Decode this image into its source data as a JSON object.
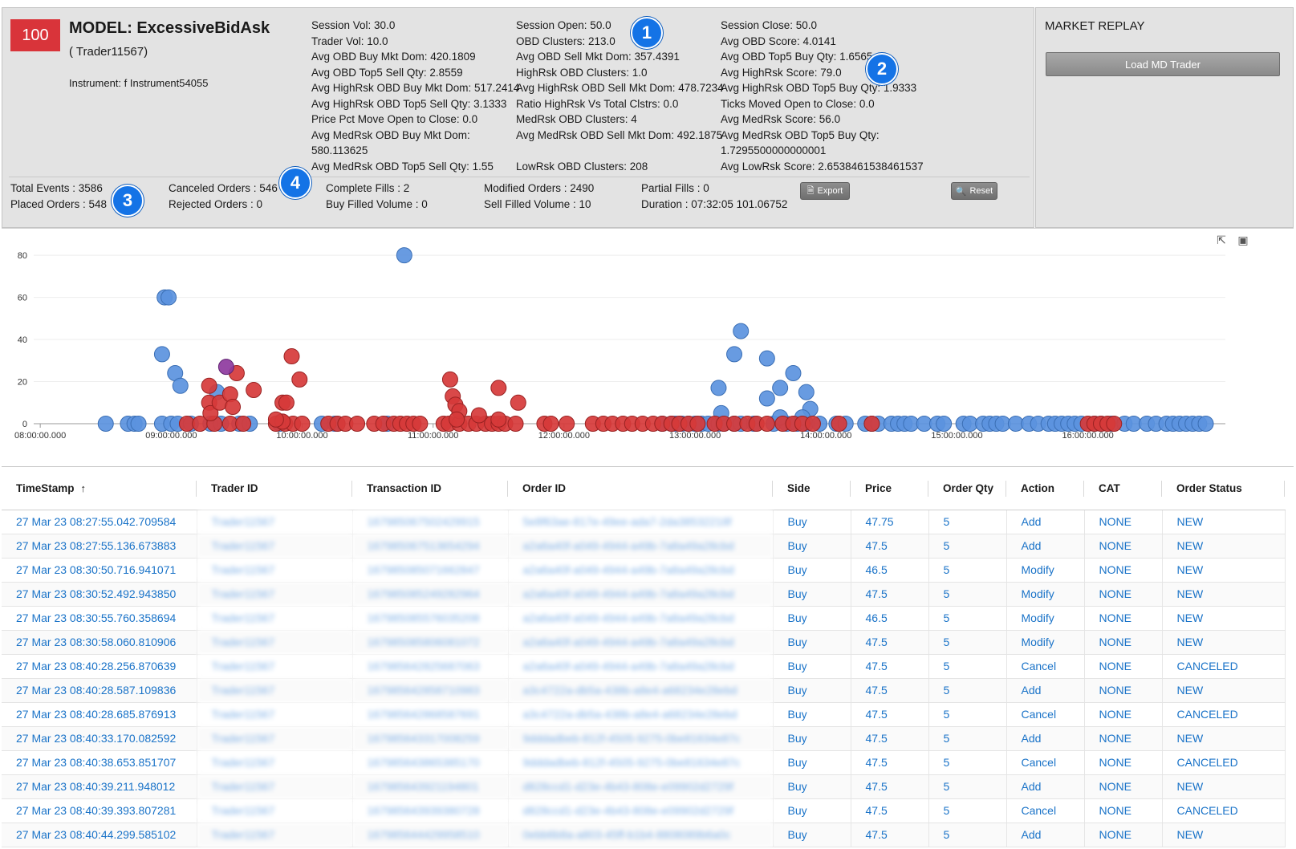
{
  "header": {
    "score": "100",
    "model_title": "MODEL: ExcessiveBidAsk",
    "trader": "( Trader11567)",
    "instrument": "Instrument: f Instrument54055",
    "stats_col1": [
      "Session Vol: 30.0",
      "Trader Vol: 10.0",
      "Avg OBD Buy Mkt Dom: 420.1809",
      "Avg OBD Top5 Sell Qty: 2.8559",
      "Avg HighRsk OBD Buy Mkt Dom: 517.2414",
      "Avg HighRsk OBD Top5 Sell Qty: 3.1333",
      "Price Pct Move Open to Close: 0.0",
      "Avg MedRsk OBD Buy Mkt Dom:",
      "580.113625",
      "Avg MedRsk OBD Top5 Sell Qty: 1.55"
    ],
    "stats_col2": [
      "Session Open: 50.0",
      "OBD Clusters: 213.0",
      "Avg OBD Sell Mkt Dom: 357.4391",
      "HighRsk OBD Clusters: 1.0",
      "Avg HighRsk OBD Sell Mkt Dom: 478.7234",
      "Ratio HighRsk Vs Total Clstrs: 0.0",
      "MedRsk OBD Clusters: 4",
      "Avg MedRsk OBD Sell Mkt Dom: 492.1875",
      "",
      "LowRsk OBD Clusters: 208"
    ],
    "stats_col3": [
      "Session Close: 50.0",
      "Avg OBD Score: 4.0141",
      "Avg OBD Top5 Buy Qty: 1.6565",
      "Avg HighRsk Score: 79.0",
      "Avg HighRsk OBD Top5 Buy Qty: 1.9333",
      "Ticks Moved Open to Close: 0.0",
      "Avg MedRsk Score: 56.0",
      "Avg MedRsk OBD Top5 Buy Qty:",
      "1.7295500000000001",
      "Avg LowRsk Score: 2.6538461538461537"
    ],
    "bottom_stats": {
      "total_events": "Total Events : 3586",
      "placed_orders": "Placed Orders : 548",
      "canceled_orders": "Canceled Orders : 546",
      "rejected_orders": "Rejected Orders : 0",
      "complete_fills": "Complete Fills : 2",
      "buy_filled_volume": "Buy Filled Volume : 0",
      "modified_orders": "Modified Orders : 2490",
      "sell_filled_volume": "Sell Filled Volume : 10",
      "partial_fills": "Partial Fills : 0",
      "duration": "Duration : 07:32:05 101.06752"
    },
    "export_label": "Export",
    "reset_label": "Reset",
    "callouts": [
      "1",
      "2",
      "3",
      "4"
    ]
  },
  "replay": {
    "title": "MARKET REPLAY",
    "load_button": "Load MD Trader"
  },
  "colors": {
    "blue_point": "#5b93de",
    "red_point": "#d63a3a",
    "purple_point": "#8e3a9e",
    "link": "#1a73c8",
    "badge": "#d9343a"
  },
  "chart_data": {
    "type": "scatter",
    "title": "",
    "xlabel": "",
    "ylabel": "",
    "x_ticks": [
      "08:00:00.000",
      "09:00:00.000",
      "10:00:00.000",
      "11:00:00.000",
      "12:00:00.000",
      "13:00:00.000",
      "14:00:00.000",
      "15:00:00.000",
      "16:00:00.000"
    ],
    "y_ticks": [
      "0",
      "20",
      "40",
      "60",
      "80"
    ],
    "xlim_hours": [
      7.95,
      17.05
    ],
    "ylim": [
      0,
      85
    ],
    "grid": true,
    "series": [
      {
        "color": "blue",
        "points": [
          [
            8.5,
            0
          ],
          [
            8.67,
            0
          ],
          [
            8.72,
            0
          ],
          [
            8.75,
            0
          ],
          [
            8.93,
            0
          ],
          [
            9.0,
            0
          ],
          [
            9.05,
            0
          ],
          [
            9.15,
            0
          ],
          [
            9.3,
            0
          ],
          [
            9.52,
            0
          ],
          [
            9.6,
            0
          ],
          [
            9.83,
            0
          ],
          [
            10.15,
            0
          ],
          [
            10.25,
            0
          ],
          [
            8.95,
            60
          ],
          [
            8.98,
            60
          ],
          [
            8.93,
            33
          ],
          [
            9.03,
            24
          ],
          [
            9.07,
            18
          ],
          [
            9.35,
            15
          ],
          [
            9.38,
            0
          ],
          [
            9.84,
            1
          ],
          [
            10.65,
            0
          ],
          [
            10.78,
            80
          ],
          [
            12.75,
            0
          ],
          [
            12.82,
            0
          ],
          [
            12.85,
            0
          ],
          [
            12.9,
            0
          ],
          [
            12.95,
            0
          ],
          [
            13.0,
            0
          ],
          [
            13.05,
            0
          ],
          [
            13.1,
            0
          ],
          [
            13.18,
            0
          ],
          [
            13.22,
            0
          ],
          [
            13.3,
            0
          ],
          [
            13.35,
            0
          ],
          [
            13.45,
            0
          ],
          [
            13.6,
            0
          ],
          [
            13.7,
            0
          ],
          [
            13.78,
            0
          ],
          [
            13.85,
            0
          ],
          [
            13.95,
            0
          ],
          [
            14.08,
            0
          ],
          [
            14.15,
            0
          ],
          [
            13.18,
            17
          ],
          [
            13.2,
            5
          ],
          [
            13.3,
            33
          ],
          [
            13.35,
            44
          ],
          [
            13.55,
            31
          ],
          [
            13.55,
            12
          ],
          [
            13.65,
            17
          ],
          [
            13.75,
            24
          ],
          [
            13.65,
            3
          ],
          [
            13.85,
            15
          ],
          [
            13.88,
            7
          ],
          [
            13.82,
            3
          ],
          [
            14.3,
            0
          ],
          [
            14.35,
            0
          ],
          [
            14.4,
            0
          ],
          [
            14.5,
            0
          ],
          [
            14.55,
            0
          ],
          [
            14.6,
            0
          ],
          [
            14.65,
            0
          ],
          [
            14.75,
            0
          ],
          [
            14.85,
            0
          ],
          [
            14.9,
            0
          ],
          [
            15.05,
            0
          ],
          [
            15.1,
            0
          ],
          [
            15.2,
            0
          ],
          [
            15.25,
            0
          ],
          [
            15.3,
            0
          ],
          [
            15.35,
            0
          ],
          [
            15.45,
            0
          ],
          [
            15.55,
            0
          ],
          [
            15.62,
            0
          ],
          [
            15.7,
            0
          ],
          [
            15.75,
            0
          ],
          [
            15.8,
            0
          ],
          [
            15.85,
            0
          ],
          [
            15.9,
            0
          ],
          [
            15.95,
            0
          ],
          [
            16.05,
            0
          ],
          [
            16.1,
            0
          ],
          [
            16.18,
            0
          ],
          [
            16.28,
            0
          ],
          [
            16.35,
            0
          ],
          [
            16.45,
            0
          ],
          [
            16.52,
            0
          ],
          [
            16.6,
            0
          ],
          [
            16.65,
            0
          ],
          [
            16.7,
            0
          ],
          [
            16.75,
            0
          ],
          [
            16.8,
            0
          ],
          [
            16.85,
            0
          ],
          [
            16.9,
            0
          ]
        ]
      },
      {
        "color": "red",
        "points": [
          [
            9.12,
            0
          ],
          [
            9.22,
            0
          ],
          [
            9.33,
            0
          ],
          [
            9.45,
            0
          ],
          [
            9.55,
            0
          ],
          [
            9.8,
            0
          ],
          [
            9.87,
            0
          ],
          [
            9.93,
            0
          ],
          [
            10.0,
            0
          ],
          [
            10.2,
            0
          ],
          [
            10.27,
            0
          ],
          [
            10.33,
            0
          ],
          [
            10.42,
            0
          ],
          [
            10.55,
            0
          ],
          [
            10.62,
            0
          ],
          [
            10.7,
            0
          ],
          [
            10.75,
            0
          ],
          [
            10.8,
            0
          ],
          [
            10.85,
            0
          ],
          [
            10.9,
            0
          ],
          [
            11.08,
            0
          ],
          [
            11.12,
            0
          ],
          [
            11.2,
            0
          ],
          [
            11.27,
            0
          ],
          [
            11.33,
            0
          ],
          [
            11.4,
            0
          ],
          [
            11.45,
            0
          ],
          [
            11.5,
            0
          ],
          [
            11.55,
            0
          ],
          [
            11.63,
            0
          ],
          [
            11.85,
            0
          ],
          [
            11.9,
            0
          ],
          [
            12.02,
            0
          ],
          [
            12.22,
            0
          ],
          [
            12.3,
            0
          ],
          [
            12.37,
            0
          ],
          [
            12.45,
            0
          ],
          [
            12.52,
            0
          ],
          [
            12.6,
            0
          ],
          [
            12.68,
            0
          ],
          [
            12.75,
            0
          ],
          [
            12.82,
            0
          ],
          [
            12.88,
            0
          ],
          [
            12.95,
            0
          ],
          [
            13.02,
            0
          ],
          [
            13.15,
            0
          ],
          [
            13.22,
            0
          ],
          [
            13.3,
            0
          ],
          [
            13.4,
            0
          ],
          [
            13.47,
            0
          ],
          [
            13.55,
            0
          ],
          [
            13.67,
            0
          ],
          [
            13.75,
            0
          ],
          [
            13.82,
            0
          ],
          [
            13.9,
            0
          ],
          [
            14.1,
            0
          ],
          [
            14.35,
            0
          ],
          [
            9.29,
            18
          ],
          [
            9.29,
            10
          ],
          [
            9.3,
            5
          ],
          [
            9.37,
            10
          ],
          [
            9.45,
            14
          ],
          [
            9.47,
            8
          ],
          [
            9.5,
            24
          ],
          [
            9.63,
            16
          ],
          [
            9.85,
            10
          ],
          [
            9.88,
            10
          ],
          [
            9.92,
            32
          ],
          [
            9.98,
            21
          ],
          [
            9.85,
            1
          ],
          [
            9.8,
            2
          ],
          [
            11.13,
            21
          ],
          [
            11.15,
            13
          ],
          [
            11.17,
            9
          ],
          [
            11.2,
            6
          ],
          [
            11.18,
            2
          ],
          [
            11.35,
            4
          ],
          [
            11.5,
            17
          ],
          [
            11.5,
            2
          ],
          [
            11.65,
            10
          ],
          [
            16.0,
            0
          ],
          [
            16.05,
            0
          ],
          [
            16.1,
            0
          ],
          [
            16.15,
            0
          ],
          [
            16.2,
            0
          ]
        ]
      },
      {
        "color": "purple",
        "points": [
          [
            9.42,
            27
          ]
        ]
      }
    ]
  },
  "table": {
    "columns": [
      "TimeStamp",
      "Trader ID",
      "Transaction ID",
      "Order ID",
      "Side",
      "Price",
      "Order Qty",
      "Action",
      "CAT",
      "Order Status"
    ],
    "sort_indicator": "↑",
    "rows": [
      [
        "27 Mar 23 08:27:55.042.709584",
        "Trader11567",
        "167985067502429915",
        "5e8f63ae-817e-49ee-ada7-2da38532218f",
        "Buy",
        "47.75",
        "5",
        "Add",
        "NONE",
        "NEW"
      ],
      [
        "27 Mar 23 08:27:55.136.673883",
        "Trader11567",
        "167985067513654294",
        "a2a6a40f-a049-4944-a49b-7a8a49a28cbd",
        "Buy",
        "47.5",
        "5",
        "Add",
        "NONE",
        "NEW"
      ],
      [
        "27 Mar 23 08:30:50.716.941071",
        "Trader11567",
        "167985085071662847",
        "a2a6a40f-a049-4944-a49b-7a8a49a28cbd",
        "Buy",
        "46.5",
        "5",
        "Modify",
        "NONE",
        "NEW"
      ],
      [
        "27 Mar 23 08:30:52.492.943850",
        "Trader11567",
        "167985085249282964",
        "a2a6a40f-a049-4944-a49b-7a8a49a28cbd",
        "Buy",
        "47.5",
        "5",
        "Modify",
        "NONE",
        "NEW"
      ],
      [
        "27 Mar 23 08:30:55.760.358694",
        "Trader11567",
        "167985085576035208",
        "a2a6a40f-a049-4944-a49b-7a8a49a28cbd",
        "Buy",
        "46.5",
        "5",
        "Modify",
        "NONE",
        "NEW"
      ],
      [
        "27 Mar 23 08:30:58.060.810906",
        "Trader11567",
        "167985085806081072",
        "a2a6a40f-a049-4944-a49b-7a8a49a28cbd",
        "Buy",
        "47.5",
        "5",
        "Modify",
        "NONE",
        "NEW"
      ],
      [
        "27 Mar 23 08:40:28.256.870639",
        "Trader11567",
        "167985642825687063",
        "a2a6a40f-a049-4944-a49b-7a8a49a28cbd",
        "Buy",
        "47.5",
        "5",
        "Cancel",
        "NONE",
        "CANCELED"
      ],
      [
        "27 Mar 23 08:40:28.587.109836",
        "Trader11567",
        "167985642858710983",
        "a3c4722a-db5a-438b-a8e4-a68234e28ebd",
        "Buy",
        "47.5",
        "5",
        "Add",
        "NONE",
        "NEW"
      ],
      [
        "27 Mar 23 08:40:28.685.876913",
        "Trader11567",
        "167985642868587691",
        "a3c4722a-db5a-438b-a8e4-a68234e28ebd",
        "Buy",
        "47.5",
        "5",
        "Cancel",
        "NONE",
        "CANCELED"
      ],
      [
        "27 Mar 23 08:40:33.170.082592",
        "Trader11567",
        "167985643317008259",
        "9dddadbeb-812f-4505-9275-0be81634e87c",
        "Buy",
        "47.5",
        "5",
        "Add",
        "NONE",
        "NEW"
      ],
      [
        "27 Mar 23 08:40:38.653.851707",
        "Trader11567",
        "167985643865385170",
        "9dddadbeb-812f-4505-9275-0be81634e87c",
        "Buy",
        "47.5",
        "5",
        "Cancel",
        "NONE",
        "CANCELED"
      ],
      [
        "27 Mar 23 08:40:39.211.948012",
        "Trader11567",
        "167985643921194801",
        "d828ccd1-d23e-4b43-808e-e09902d2729f",
        "Buy",
        "47.5",
        "5",
        "Add",
        "NONE",
        "NEW"
      ],
      [
        "27 Mar 23 08:40:39.393.807281",
        "Trader11567",
        "167985643939380728",
        "d828ccd1-d23e-4b43-808e-e09902d2729f",
        "Buy",
        "47.5",
        "5",
        "Cancel",
        "NONE",
        "CANCELED"
      ],
      [
        "27 Mar 23 08:40:44.299.585102",
        "Trader11567",
        "167985644429958510",
        "0ebb6b8a-a803-45ff-b1b4-8808089b6a0c",
        "Buy",
        "47.5",
        "5",
        "Add",
        "NONE",
        "NEW"
      ]
    ]
  }
}
